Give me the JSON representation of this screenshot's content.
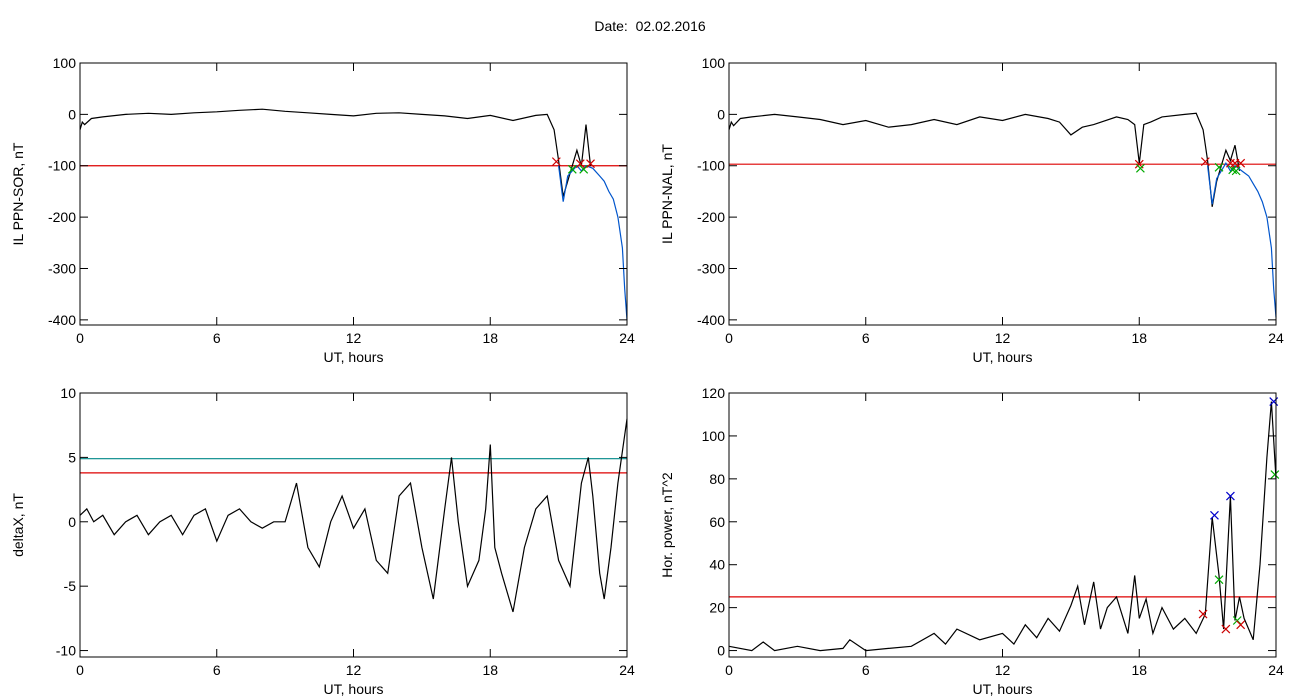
{
  "title": "Date:  02.02.2016",
  "chart_data": [
    {
      "type": "line",
      "ylabel": "IL PPN-SOR, nT",
      "xlabel": "UT, hours",
      "xlim": [
        0,
        24
      ],
      "ylim": [
        -410,
        100
      ],
      "xticks": [
        0,
        6,
        12,
        18,
        24
      ],
      "yticks": [
        100,
        0,
        -100,
        -200,
        -300,
        -400
      ],
      "threshold_lines": [
        {
          "value": -100,
          "color": "#dd0000"
        }
      ],
      "series": [
        {
          "color": "#000000",
          "x": [
            0,
            0.1,
            0.2,
            0.5,
            1,
            2,
            3,
            4,
            5,
            6,
            7,
            8,
            9,
            10,
            11,
            12,
            13,
            14,
            15,
            16,
            17,
            18,
            19,
            20,
            20.5,
            20.8,
            21.0,
            21.2,
            21.4,
            21.6,
            21.8,
            22.0,
            22.2,
            22.4
          ],
          "y": [
            -30,
            -15,
            -20,
            -8,
            -5,
            0,
            2,
            0,
            3,
            5,
            8,
            10,
            6,
            3,
            0,
            -3,
            2,
            3,
            0,
            -3,
            -8,
            -2,
            -12,
            -2,
            0,
            -30,
            -90,
            -160,
            -130,
            -100,
            -70,
            -100,
            -20,
            -100
          ]
        },
        {
          "color": "#0055cc",
          "x": [
            21.0,
            21.2,
            21.4,
            21.6,
            21.8,
            22.0,
            22.2,
            22.5,
            22.8,
            23.0,
            23.2,
            23.4,
            23.6,
            23.8,
            23.9,
            24
          ],
          "y": [
            -100,
            -170,
            -120,
            -110,
            -100,
            -110,
            -100,
            -105,
            -120,
            -130,
            -150,
            -165,
            -200,
            -260,
            -340,
            -400
          ]
        }
      ],
      "markers": [
        {
          "x": 20.9,
          "y": -92,
          "color": "#cc0000"
        },
        {
          "x": 21.6,
          "y": -107,
          "color": "#00aa00"
        },
        {
          "x": 21.95,
          "y": -96,
          "color": "#cc0000"
        },
        {
          "x": 22.1,
          "y": -107,
          "color": "#00aa00"
        },
        {
          "x": 22.4,
          "y": -96,
          "color": "#cc0000"
        }
      ]
    },
    {
      "type": "line",
      "ylabel": "IL PPN-NAL, nT",
      "xlabel": "UT, hours",
      "xlim": [
        0,
        24
      ],
      "ylim": [
        -410,
        100
      ],
      "xticks": [
        0,
        6,
        12,
        18,
        24
      ],
      "yticks": [
        100,
        0,
        -100,
        -200,
        -300,
        -400
      ],
      "threshold_lines": [
        {
          "value": -97,
          "color": "#dd0000"
        }
      ],
      "series": [
        {
          "color": "#000000",
          "x": [
            0,
            0.1,
            0.2,
            0.5,
            1,
            2,
            3,
            4,
            5,
            6,
            7,
            8,
            9,
            10,
            11,
            12,
            13,
            14,
            14.5,
            15,
            15.5,
            16,
            17,
            17.5,
            17.8,
            18.0,
            18.2,
            18.5,
            19,
            20,
            20.5,
            20.8,
            21.0,
            21.2,
            21.4,
            21.6,
            21.8,
            22.0,
            22.2,
            22.4
          ],
          "y": [
            -30,
            -15,
            -22,
            -8,
            -5,
            0,
            -5,
            -10,
            -20,
            -12,
            -25,
            -20,
            -10,
            -20,
            -5,
            -12,
            0,
            -8,
            -15,
            -40,
            -25,
            -20,
            -5,
            -10,
            -20,
            -95,
            -20,
            -15,
            -5,
            0,
            2,
            -30,
            -90,
            -180,
            -130,
            -100,
            -70,
            -90,
            -60,
            -110
          ]
        },
        {
          "color": "#0055cc",
          "x": [
            21.0,
            21.2,
            21.4,
            21.6,
            21.8,
            22.0,
            22.2,
            22.5,
            22.8,
            23.0,
            23.2,
            23.4,
            23.6,
            23.8,
            23.9,
            24
          ],
          "y": [
            -100,
            -175,
            -125,
            -110,
            -95,
            -110,
            -100,
            -110,
            -120,
            -135,
            -150,
            -170,
            -200,
            -260,
            -340,
            -395
          ]
        }
      ],
      "markers": [
        {
          "x": 18.0,
          "y": -97,
          "color": "#cc0000"
        },
        {
          "x": 18.05,
          "y": -105,
          "color": "#00aa00"
        },
        {
          "x": 20.9,
          "y": -92,
          "color": "#cc0000"
        },
        {
          "x": 21.5,
          "y": -103,
          "color": "#00aa00"
        },
        {
          "x": 22.0,
          "y": -95,
          "color": "#cc0000"
        },
        {
          "x": 22.1,
          "y": -108,
          "color": "#00aa00"
        },
        {
          "x": 22.2,
          "y": -95,
          "color": "#cc0000"
        },
        {
          "x": 22.25,
          "y": -110,
          "color": "#00aa00"
        },
        {
          "x": 22.45,
          "y": -95,
          "color": "#cc0000"
        }
      ]
    },
    {
      "type": "line",
      "ylabel": "deltaX, nT",
      "xlabel": "UT, hours",
      "xlim": [
        0,
        24
      ],
      "ylim": [
        -10.5,
        10
      ],
      "xticks": [
        0,
        6,
        12,
        18,
        24
      ],
      "yticks": [
        10,
        5,
        0,
        -5,
        -10
      ],
      "threshold_lines": [
        {
          "value": 4.9,
          "color": "#008888"
        },
        {
          "value": 3.8,
          "color": "#dd0000"
        }
      ],
      "series": [
        {
          "color": "#000000",
          "x": [
            0,
            0.3,
            0.6,
            1,
            1.5,
            2,
            2.5,
            3,
            3.5,
            4,
            4.5,
            5,
            5.5,
            6,
            6.5,
            7,
            7.5,
            8,
            8.5,
            9,
            9.5,
            10,
            10.5,
            11,
            11.5,
            12,
            12.5,
            13,
            13.5,
            14,
            14.5,
            15,
            15.5,
            16,
            16.3,
            16.6,
            17,
            17.5,
            17.8,
            18,
            18.2,
            18.5,
            19,
            19.5,
            20,
            20.5,
            21,
            21.5,
            22,
            22.3,
            22.5,
            22.8,
            23,
            23.3,
            23.6,
            24
          ],
          "y": [
            0.5,
            1,
            0,
            0.5,
            -1,
            0,
            0.5,
            -1,
            0,
            0.5,
            -1,
            0.5,
            1,
            -1.5,
            0.5,
            1,
            0,
            -0.5,
            0,
            0,
            3,
            -2,
            -3.5,
            0,
            2,
            -0.5,
            1,
            -3,
            -4,
            2,
            3,
            -2,
            -6,
            1,
            5,
            0,
            -5,
            -3,
            1,
            6,
            -2,
            -4,
            -7,
            -2,
            1,
            2,
            -3,
            -5,
            3,
            5,
            2,
            -4,
            -6,
            -2,
            3,
            8
          ]
        }
      ],
      "markers": []
    },
    {
      "type": "line",
      "ylabel": "Hor. power, nT^2",
      "xlabel": "UT, hours",
      "xlim": [
        0,
        24
      ],
      "ylim": [
        -3,
        120
      ],
      "xticks": [
        0,
        6,
        12,
        18,
        24
      ],
      "yticks": [
        120,
        100,
        80,
        60,
        40,
        20,
        0
      ],
      "threshold_lines": [
        {
          "value": 25,
          "color": "#dd0000"
        }
      ],
      "series": [
        {
          "color": "#000000",
          "x": [
            0,
            1,
            1.5,
            2,
            3,
            4,
            5,
            5.3,
            6,
            7,
            8,
            9,
            9.5,
            10,
            11,
            12,
            12.5,
            13,
            13.5,
            14,
            14.5,
            15,
            15.3,
            15.6,
            16,
            16.3,
            16.6,
            17,
            17.5,
            17.8,
            18,
            18.3,
            18.6,
            19,
            19.5,
            20,
            20.5,
            20.9,
            21.2,
            21.5,
            21.7,
            22.0,
            22.2,
            22.4,
            22.6,
            22.8,
            23,
            23.3,
            23.6,
            23.8,
            24
          ],
          "y": [
            2,
            0,
            4,
            0,
            2,
            0,
            1,
            5,
            0,
            1,
            2,
            8,
            3,
            10,
            5,
            8,
            3,
            12,
            6,
            15,
            9,
            21,
            30,
            12,
            32,
            10,
            20,
            25,
            8,
            35,
            15,
            24,
            8,
            20,
            10,
            15,
            8,
            17,
            62,
            35,
            10,
            72,
            14,
            25,
            15,
            10,
            5,
            40,
            90,
            116,
            80
          ]
        }
      ],
      "markers": [
        {
          "x": 20.8,
          "y": 17,
          "color": "#cc0000"
        },
        {
          "x": 21.3,
          "y": 63,
          "color": "#0000cc"
        },
        {
          "x": 21.5,
          "y": 33,
          "color": "#00aa00"
        },
        {
          "x": 21.8,
          "y": 10,
          "color": "#cc0000"
        },
        {
          "x": 22.0,
          "y": 72,
          "color": "#0000cc"
        },
        {
          "x": 22.3,
          "y": 14,
          "color": "#00aa00"
        },
        {
          "x": 22.45,
          "y": 12,
          "color": "#cc0000"
        },
        {
          "x": 23.9,
          "y": 116,
          "color": "#0000cc"
        },
        {
          "x": 23.95,
          "y": 82,
          "color": "#00aa00"
        }
      ]
    }
  ]
}
